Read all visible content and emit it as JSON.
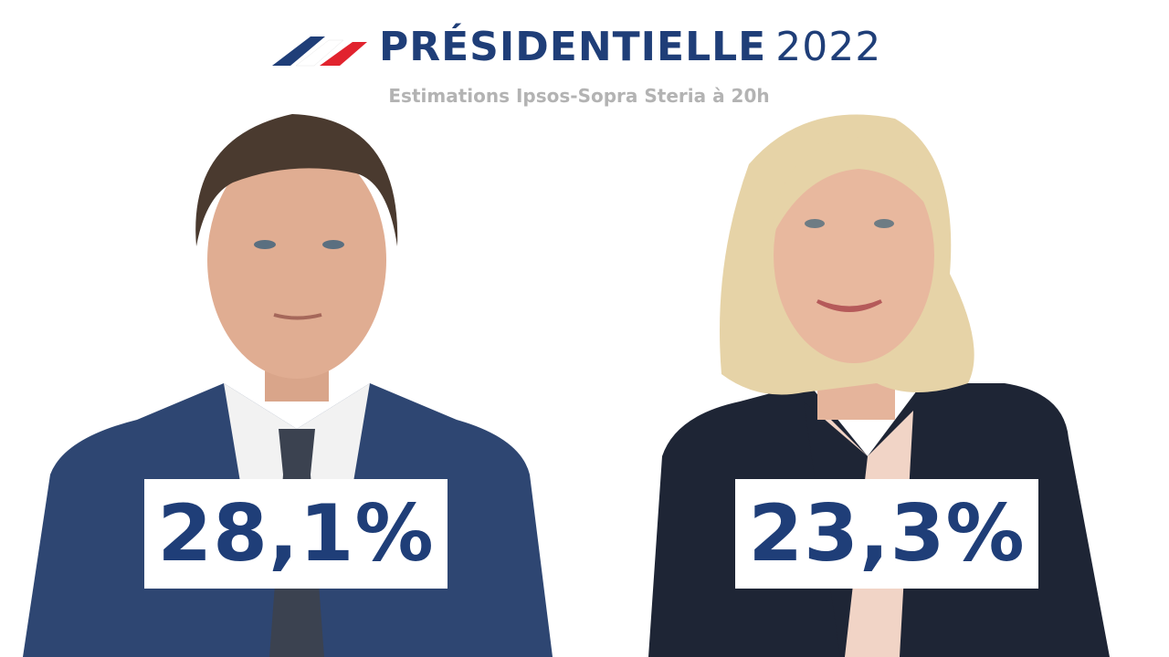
{
  "header": {
    "title": "PRÉSIDENTIELLE",
    "year": "2022",
    "subtitle": "Estimations Ipsos-Sopra Steria à 20h"
  },
  "candidates": [
    {
      "score": "28,1%"
    },
    {
      "score": "23,3%"
    }
  ]
}
